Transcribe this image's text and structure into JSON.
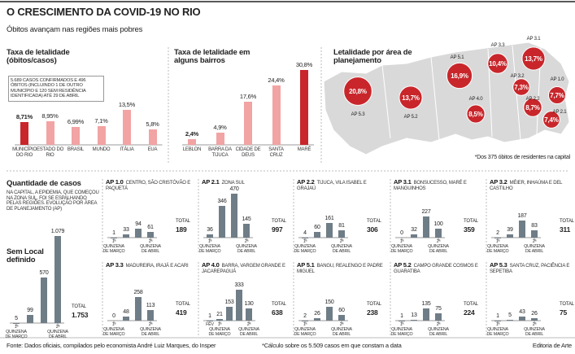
{
  "title": "O CRESCIMENTO DA COVID-19 NO RIO",
  "subtitle": "Óbitos avançam nas regiões mais pobres",
  "source": "Fonte: Dados oficiais, compilados pelo economista André Luiz Marques, do Insper",
  "footnote": "*Cálculo sobre os 5.509 casos em que constam a data",
  "credit": "Editoria de Arte",
  "chart_data": [
    {
      "type": "bar",
      "title": "Taxa de letalidade (óbitos/casos)",
      "note": "5.689 CASOS CONFIRMADOS E 496 ÓBITOS (INCLUINDO 1 DE OUTRO MUNICÍPIO E 120 SEM RESIDÊNCIA IDENTIFICADA) ATÉ 29 DE ABRIL",
      "categories": [
        "MUNICÍPIO DO RIO",
        "ESTADO DO RIO",
        "BRASIL",
        "MUNDO",
        "ITÁLIA",
        "EUA"
      ],
      "values": [
        8.71,
        8.95,
        6.99,
        7.1,
        13.5,
        5.8
      ],
      "value_labels": [
        "8,71%",
        "8,95%",
        "6,99%",
        "7,1%",
        "13,5%",
        "5,8%"
      ],
      "colors": [
        "#c8262b",
        "#f2a3a3",
        "#f2a3a3",
        "#f2a3a3",
        "#f2a3a3",
        "#f2a3a3"
      ],
      "ylim": [
        0,
        15
      ]
    },
    {
      "type": "bar",
      "title": "Taxa de letalidade em alguns bairros",
      "categories": [
        "LEBLON",
        "BARRA DA TIJUCA",
        "CIDADE DE DEUS",
        "SANTA CRUZ",
        "MARÉ"
      ],
      "values": [
        2.4,
        4.9,
        17.6,
        24.4,
        30.8
      ],
      "value_labels": [
        "2,4%",
        "4,9%",
        "17,6%",
        "24,4%",
        "30,8%"
      ],
      "colors": [
        "#f2a3a3",
        "#f2a3a3",
        "#f2a3a3",
        "#f2a3a3",
        "#c8262b"
      ],
      "ylim": [
        0,
        35
      ]
    },
    {
      "type": "bubble-map",
      "title": "Letalidade por área de planejamento",
      "categories": [
        "AP 5.3",
        "AP 5.2",
        "AP 5.1",
        "AP 4.0",
        "AP 3.3",
        "AP 3.1",
        "AP 3.2",
        "AP 2.2",
        "AP 1.0",
        "AP 2.1"
      ],
      "values": [
        20.8,
        13.7,
        16.9,
        8.5,
        10.4,
        13.7,
        7.3,
        8.7,
        7.7,
        7.4
      ],
      "value_labels": [
        "20,8%",
        "13,7%",
        "16,9%",
        "8,5%",
        "10,4%",
        "13,7%",
        "7,3%",
        "8,7%",
        "7,7%",
        "7,4%"
      ],
      "color": "#c8262b",
      "footnote": "*Dos 375 óbitos de residentes na capital"
    },
    {
      "type": "small-multiples",
      "title": "Quantidade de casos",
      "description": "NA CAPITAL, A EPIDEMIA, QUE COMEÇOU NA ZONA SUL, FOI SE ESPALHANDO PELAS REGIÕES. EVOLUÇÃO POR ÁREA DE PLANEJAMENTO (AP)",
      "total_label": "TOTAL",
      "color": "#6f7d87",
      "ylim": [
        0,
        500
      ],
      "unlocated": {
        "name": "Sem Local definido",
        "ylim": [
          0,
          1100
        ],
        "categories": [
          "1ª QUINZENA DE MARÇO",
          null,
          null,
          "2ª QUINZENA DE ABRIL"
        ],
        "values": [
          5,
          99,
          570,
          1079
        ],
        "value_labels": [
          "5",
          "99",
          "570",
          "1.079"
        ],
        "total": {
          "value": 1753,
          "label": "1.753"
        }
      },
      "panels": [
        {
          "code": "AP 1.0",
          "name": "CENTRO, SÃO CRISTÓVÃO E PAQUETÁ",
          "categories": [
            "1ª QUINZENA DE MARÇO",
            null,
            null,
            "2ª QUINZENA DE ABRIL"
          ],
          "values": [
            1,
            33,
            94,
            61
          ],
          "total": 189
        },
        {
          "code": "AP 2.1",
          "name": "ZONA SUL",
          "categories": [
            "1ª QUINZENA DE MARÇO",
            null,
            null,
            "2ª QUINZENA DE ABRIL"
          ],
          "values": [
            36,
            346,
            470,
            145
          ],
          "total": 997
        },
        {
          "code": "AP 2.2",
          "name": "TIJUCA, VILA ISABEL E GRAJAÚ",
          "categories": [
            "1ª QUINZENA DE MARÇO",
            null,
            null,
            "2ª QUINZENA DE ABRIL"
          ],
          "values": [
            4,
            60,
            161,
            81
          ],
          "total": 306
        },
        {
          "code": "AP 3.1",
          "name": "BONSUCESSO, MARÉ E MANGUINHOS",
          "categories": [
            "1ª QUINZENA DE MARÇO",
            null,
            null,
            "2ª QUINZENA DE ABRIL"
          ],
          "values": [
            0,
            32,
            227,
            100
          ],
          "total": 359
        },
        {
          "code": "AP 3.2",
          "name": "MÉIER, INHAÚMA E DEL CASTILHO",
          "categories": [
            "1ª QUINZENA DE MARÇO",
            null,
            null,
            "2ª QUINZENA DE ABRIL"
          ],
          "values": [
            2,
            39,
            187,
            83
          ],
          "total": 311
        },
        {
          "code": "AP 3.3",
          "name": "MADUREIRA, IRAJÁ E ACARI",
          "categories": [
            "1ª QUINZENA DE MARÇO",
            null,
            null,
            "2ª QUINZENA DE ABRIL"
          ],
          "values": [
            0,
            48,
            258,
            113
          ],
          "total": 419
        },
        {
          "code": "AP 4.0",
          "name": "BARRA, VARGEM GRANDE E JACAREPAGUÁ",
          "categories": [
            "FEV",
            "1ª QUINZENA DE MARÇO",
            null,
            null,
            "2ª QUINZENA DE ABRIL"
          ],
          "values": [
            1,
            21,
            153,
            333,
            130
          ],
          "total": 638
        },
        {
          "code": "AP 5.1",
          "name": "BANGU, REALENGO E PADRE MIGUEL",
          "categories": [
            "1ª QUINZENA DE MARÇO",
            null,
            null,
            "2ª QUINZENA DE ABRIL"
          ],
          "values": [
            2,
            26,
            150,
            60
          ],
          "total": 238
        },
        {
          "code": "AP 5.2",
          "name": "CAMPO GRANDE COSMOS E GUARATIBA",
          "categories": [
            "1ª QUINZENA DE MARÇO",
            null,
            null,
            "2ª QUINZENA DE ABRIL"
          ],
          "values": [
            1,
            13,
            135,
            75
          ],
          "total": 224
        },
        {
          "code": "AP 5.3",
          "name": "SANTA CRUZ, PACIÊNCIA E SEPETIBA",
          "categories": [
            "1ª QUINZENA DE MARÇO",
            null,
            null,
            "2ª QUINZENA DE ABRIL"
          ],
          "values": [
            1,
            5,
            43,
            26
          ],
          "total": 75
        }
      ]
    }
  ]
}
